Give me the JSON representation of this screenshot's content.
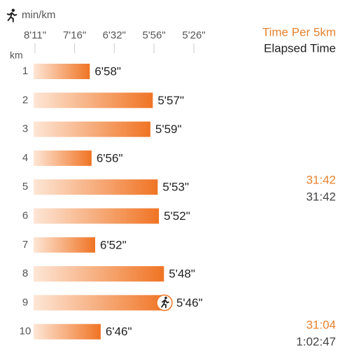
{
  "chart_data": {
    "type": "bar",
    "orientation": "horizontal",
    "xscale": "inverse",
    "x_label": "min/km",
    "y_label": "km",
    "categories": [
      "1",
      "2",
      "3",
      "4",
      "5",
      "6",
      "7",
      "8",
      "9",
      "10"
    ],
    "values": [
      418,
      357,
      359,
      416,
      353,
      352,
      412,
      348,
      346,
      406
    ],
    "value_labels": [
      "6'58\"",
      "5'57\"",
      "5'59\"",
      "6'56\"",
      "5'53\"",
      "5'52\"",
      "6'52\"",
      "5'48\"",
      "5'46\"",
      "6'46\""
    ],
    "xlim": [
      491,
      326
    ],
    "xticks": [
      {
        "value": 491,
        "label": "8'11\""
      },
      {
        "value": 436,
        "label": "7'16\""
      },
      {
        "value": 392,
        "label": "6'32\""
      },
      {
        "value": 356,
        "label": "5'56\""
      },
      {
        "value": 326,
        "label": "5'26\""
      }
    ],
    "color": "#f07424",
    "legend": [
      "Time Per 5km",
      "Elapsed Time"
    ],
    "splits": [
      {
        "time": "31:42",
        "elapsed": "31:42"
      },
      {
        "time": "31:04",
        "elapsed": "1:02:47"
      }
    ]
  }
}
